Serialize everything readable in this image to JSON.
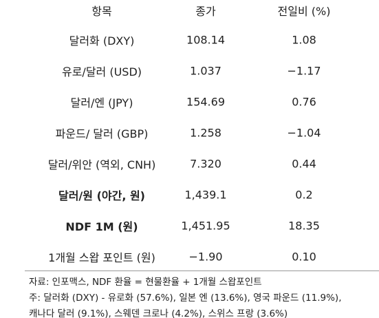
{
  "table": {
    "header": [
      "항목",
      "종가",
      "전일비 (%)"
    ],
    "rows": [
      [
        "달러화 (DXY)",
        "108.14",
        "1.08"
      ],
      [
        "유로/달러 (USD)",
        "1.037",
        "−1.17"
      ],
      [
        "달러/엔 (JPY)",
        "154.69",
        "0.76"
      ],
      [
        "파운드/ 달러 (GBP)",
        "1.258",
        "−1.04"
      ],
      [
        "달러/위안 (역외, CNH)",
        "7.320",
        "0.44"
      ],
      [
        "달러/원 (야간, 원)",
        "1,439.1",
        "0.2"
      ],
      [
        "NDF 1M (원)",
        "1,451.95",
        "18.35"
      ],
      [
        "1개월 스왑 포인트 (원)",
        "−1.90",
        "0.10"
      ]
    ]
  },
  "notes": [
    "자료: 인포맥스, NDF 환율 = 현물환율 + 1개월 스왑포인트",
    "주: 달러화 (DXY) - 유로화 (57.6%), 일본 엔 (13.6%), 영국 파운드 (11.9%),",
    "캐나다 달러 (9.1%), 스웨덴 크로나 (4.2%), 스위스 프랑 (3.6%)"
  ]
}
